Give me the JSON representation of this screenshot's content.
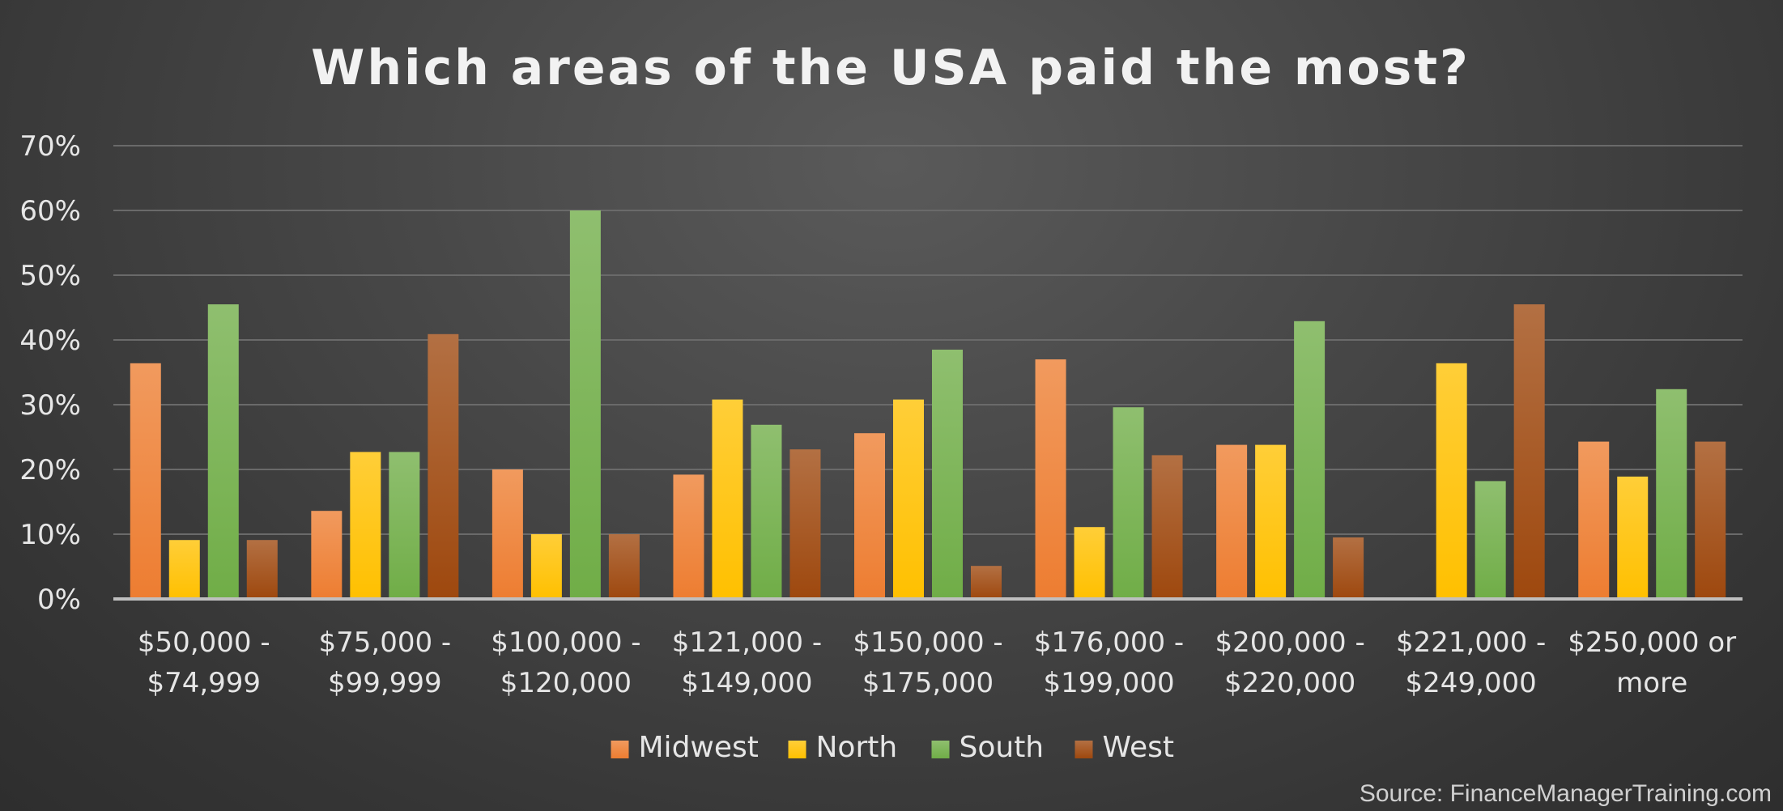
{
  "chart_data": {
    "type": "bar",
    "title": "Which areas of the USA paid the most?",
    "source": "Source: FinanceManagerTraining.com",
    "categories": [
      [
        "$50,000 -",
        "$74,999"
      ],
      [
        "$75,000 -",
        "$99,999"
      ],
      [
        "$100,000 -",
        "$120,000"
      ],
      [
        "$121,000 -",
        "$149,000"
      ],
      [
        "$150,000 -",
        "$175,000"
      ],
      [
        "$176,000 -",
        "$199,000"
      ],
      [
        "$200,000 -",
        "$220,000"
      ],
      [
        "$221,000 -",
        "$249,000"
      ],
      [
        "$250,000 or",
        "more"
      ]
    ],
    "series": [
      {
        "name": "Midwest",
        "color": "#ed7d31",
        "values": [
          36.4,
          13.6,
          20.0,
          19.2,
          25.6,
          37.0,
          23.8,
          0,
          24.3
        ]
      },
      {
        "name": "North",
        "color": "#ffc000",
        "values": [
          9.1,
          22.7,
          10.0,
          30.8,
          30.8,
          11.1,
          23.8,
          36.4,
          18.9
        ]
      },
      {
        "name": "South",
        "color": "#70ad47",
        "values": [
          45.5,
          22.7,
          60.0,
          26.9,
          38.5,
          29.6,
          42.9,
          18.2,
          32.4
        ]
      },
      {
        "name": "West",
        "color": "#9e480e",
        "values": [
          9.1,
          40.9,
          10.0,
          23.1,
          5.1,
          22.2,
          9.5,
          45.5,
          24.3
        ]
      }
    ],
    "y_ticks": [
      "0%",
      "10%",
      "20%",
      "30%",
      "40%",
      "50%",
      "60%",
      "70%"
    ],
    "ylim": [
      0,
      70
    ],
    "grid": true,
    "legend_position": "bottom"
  }
}
